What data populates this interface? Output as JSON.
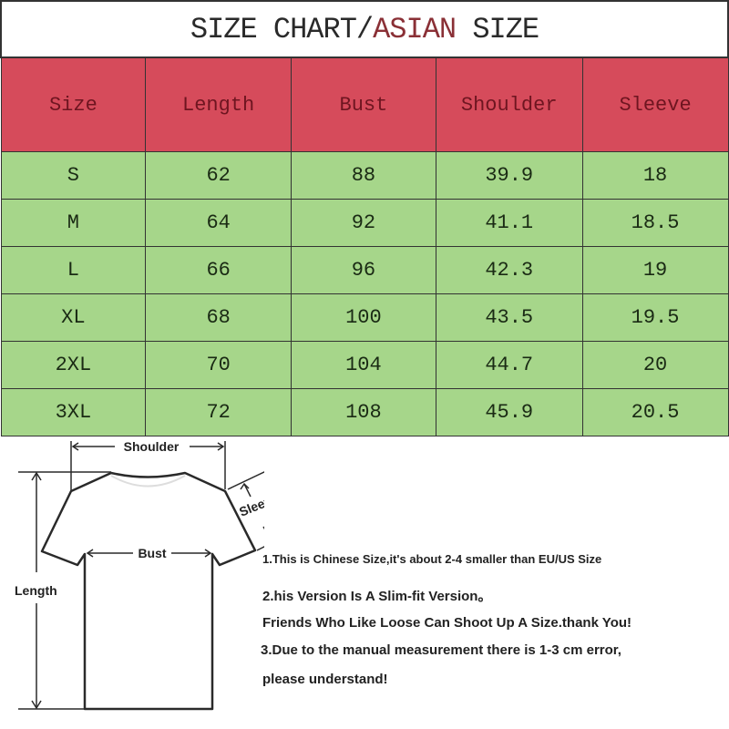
{
  "title": {
    "part1": "SIZE CHART/",
    "accent": "ASIAN",
    "part2": " SIZE",
    "accent_color": "#8a3036"
  },
  "colors": {
    "header_bg": "#d64b5b",
    "row_bg": "#a6d68a"
  },
  "table": {
    "headers": [
      "Size",
      "Length",
      "Bust",
      "Shoulder",
      "Sleeve"
    ],
    "rows": [
      [
        "S",
        "62",
        "88",
        "39.9",
        "18"
      ],
      [
        "M",
        "64",
        "92",
        "41.1",
        "18.5"
      ],
      [
        "L",
        "66",
        "96",
        "42.3",
        "19"
      ],
      [
        "XL",
        "68",
        "100",
        "43.5",
        "19.5"
      ],
      [
        "2XL",
        "70",
        "104",
        "44.7",
        "20"
      ],
      [
        "3XL",
        "72",
        "108",
        "45.9",
        "20.5"
      ]
    ]
  },
  "diagram": {
    "shoulder": "Shoulder",
    "sleeve": "Sleeve",
    "bust": "Bust",
    "length": "Length"
  },
  "notes": [
    "1.This is Chinese Size,it's about 2-4 smaller than EU/US Size",
    "2.his Version Is A Slim-fit Version。",
    "Friends Who Like Loose Can Shoot Up A Size.thank You!",
    "3.Due to the manual measurement there is 1-3 cm error,",
    "please understand!"
  ]
}
